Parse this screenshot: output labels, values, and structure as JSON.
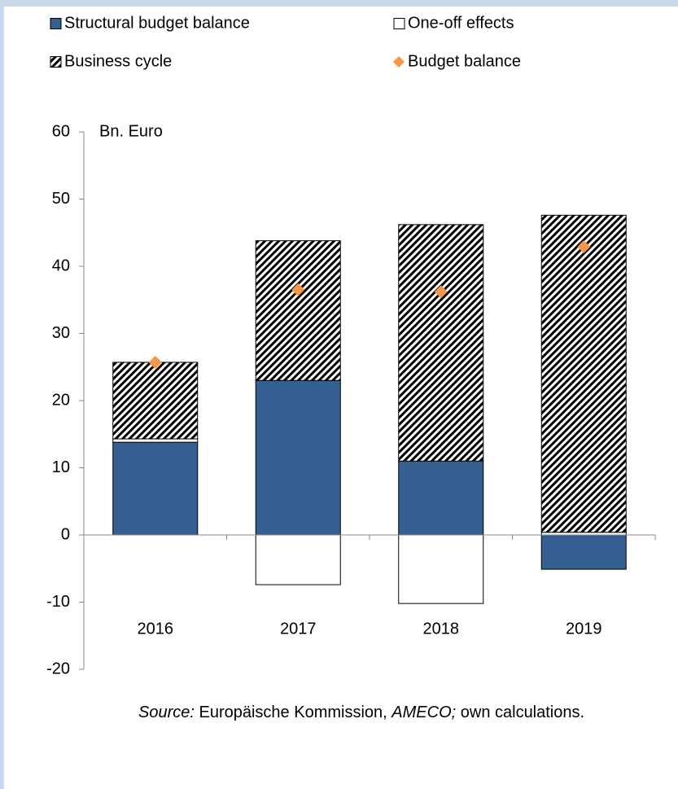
{
  "chart_data": {
    "type": "bar",
    "y_label": "Bn. Euro",
    "categories": [
      "2016",
      "2017",
      "2018",
      "2019"
    ],
    "series": [
      {
        "name": "Structural budget balance",
        "kind": "bar",
        "color": "#355f91",
        "values": [
          13.8,
          23.0,
          11.0,
          -5.1
        ]
      },
      {
        "name": "One-off effects",
        "kind": "bar",
        "color": "#ffffff",
        "values": [
          0.5,
          -7.4,
          -10.2,
          0.4
        ]
      },
      {
        "name": "Business cycle",
        "kind": "bar",
        "color": "#000000",
        "pattern": "hatch",
        "values": [
          11.4,
          20.8,
          35.2,
          47.2
        ]
      },
      {
        "name": "Budget balance",
        "kind": "marker",
        "color": "#f79646",
        "values": [
          25.7,
          36.5,
          36.2,
          42.9
        ]
      }
    ],
    "ylim": [
      -20,
      60
    ],
    "yticks": [
      -20,
      -10,
      0,
      10,
      20,
      30,
      40,
      50,
      60
    ],
    "source": [
      "Source:",
      "Europäische Kommission,",
      "AMECO;",
      "own calculations."
    ]
  }
}
